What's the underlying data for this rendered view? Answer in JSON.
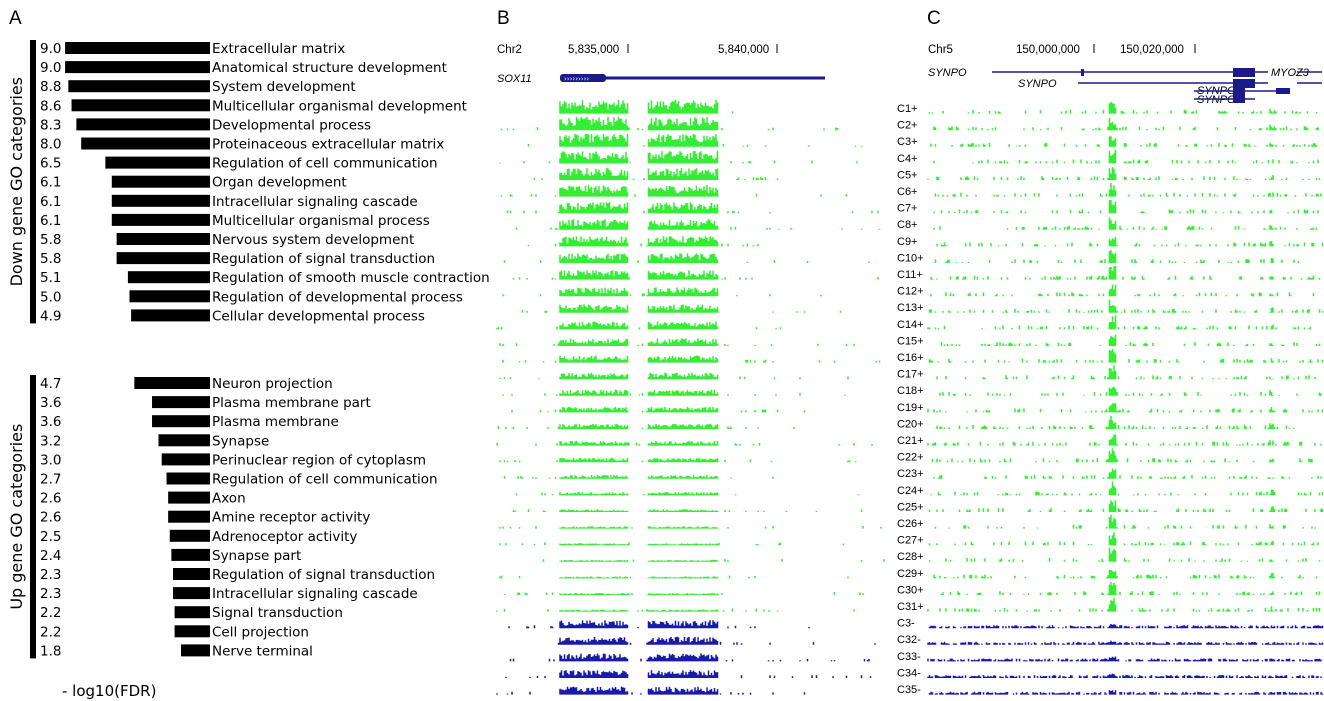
{
  "panels": {
    "a": "A",
    "b": "B",
    "c": "C"
  },
  "chart_data": [
    {
      "type": "bar",
      "orientation": "horizontal",
      "xlabel": "- log10(FDR)",
      "groups": [
        {
          "name": "Down gene GO categories",
          "categories": [
            "Extracellular matrix",
            "Anatomical structure development",
            "System development",
            "Multicellular organismal development",
            "Developmental process",
            "Proteinaceous extracellular matrix",
            "Regulation of cell communication",
            "Organ development",
            "Intracellular signaling cascade",
            "Multicellular organismal process",
            "Nervous system development",
            "Regulation of signal transduction",
            "Regulation of smooth muscle contraction",
            "Regulation of developmental process",
            "Cellular developmental process"
          ],
          "values": [
            9.0,
            9.0,
            8.8,
            8.6,
            8.3,
            8.0,
            6.5,
            6.1,
            6.1,
            6.1,
            5.8,
            5.8,
            5.1,
            5.0,
            4.9
          ],
          "value_labels": [
            "9.0",
            "9.0",
            "8.8",
            "8.6",
            "8.3",
            "8.0",
            "6.5",
            "6.1",
            "6.1",
            "6.1",
            "5.8",
            "5.8",
            "5.1",
            "5.0",
            "4.9"
          ]
        },
        {
          "name": "Up gene GO categories",
          "categories": [
            "Neuron projection",
            "Plasma membrane part",
            "Plasma membrane",
            "Synapse",
            "Perinuclear region of cytoplasm",
            "Regulation of cell communication",
            "Axon",
            "Amine receptor activity",
            "Adrenoceptor activity",
            "Synapse part",
            "Regulation of signal transduction",
            "Intracellular signaling cascade",
            "Signal transduction",
            "Cell projection",
            "Nerve terminal"
          ],
          "values": [
            4.7,
            3.6,
            3.6,
            3.2,
            3.0,
            2.7,
            2.6,
            2.6,
            2.5,
            2.4,
            2.3,
            2.3,
            2.2,
            2.2,
            1.8
          ],
          "value_labels": [
            "4.7",
            "3.6",
            "3.6",
            "3.2",
            "3.0",
            "2.7",
            "2.6",
            "2.6",
            "2.5",
            "2.4",
            "2.3",
            "2.3",
            "2.2",
            "2.2",
            "1.8"
          ]
        }
      ]
    },
    {
      "type": "genome_tracks",
      "chrom": "Chr2",
      "tick_labels": [
        "5,835,000",
        "5,840,000"
      ],
      "gene": "SOX11",
      "tracks_plus": 31,
      "tracks_minus": 5,
      "plus_color": "#33ee33",
      "minus_color": "#1a1aaa",
      "peak_regions": [
        [
          0.16,
          0.34
        ],
        [
          0.39,
          0.57
        ]
      ]
    },
    {
      "type": "genome_tracks",
      "chrom": "Chr5",
      "tick_labels": [
        "150,000,000",
        "150,020,000"
      ],
      "genes": [
        "SYNPO",
        "SYNPO",
        "MYOZ3",
        "SYNPO",
        "SYNPO"
      ],
      "gene_left_label": "SYNPO",
      "track_labels": [
        "C1+",
        "C2+",
        "C3+",
        "C4+",
        "C5+",
        "C6+",
        "C7+",
        "C8+",
        "C9+",
        "C10+",
        "C11+",
        "C12+",
        "C13+",
        "C14+",
        "C15+",
        "C16+",
        "C17+",
        "C18+",
        "C19+",
        "C20+",
        "C21+",
        "C22+",
        "C23+",
        "C24+",
        "C25+",
        "C26+",
        "C27+",
        "C28+",
        "C29+",
        "C30+",
        "C31+",
        "C3-",
        "C32-",
        "C33-",
        "C34-",
        "C35-"
      ],
      "plus_color": "#33ee33",
      "minus_color": "#1a1aaa"
    }
  ]
}
